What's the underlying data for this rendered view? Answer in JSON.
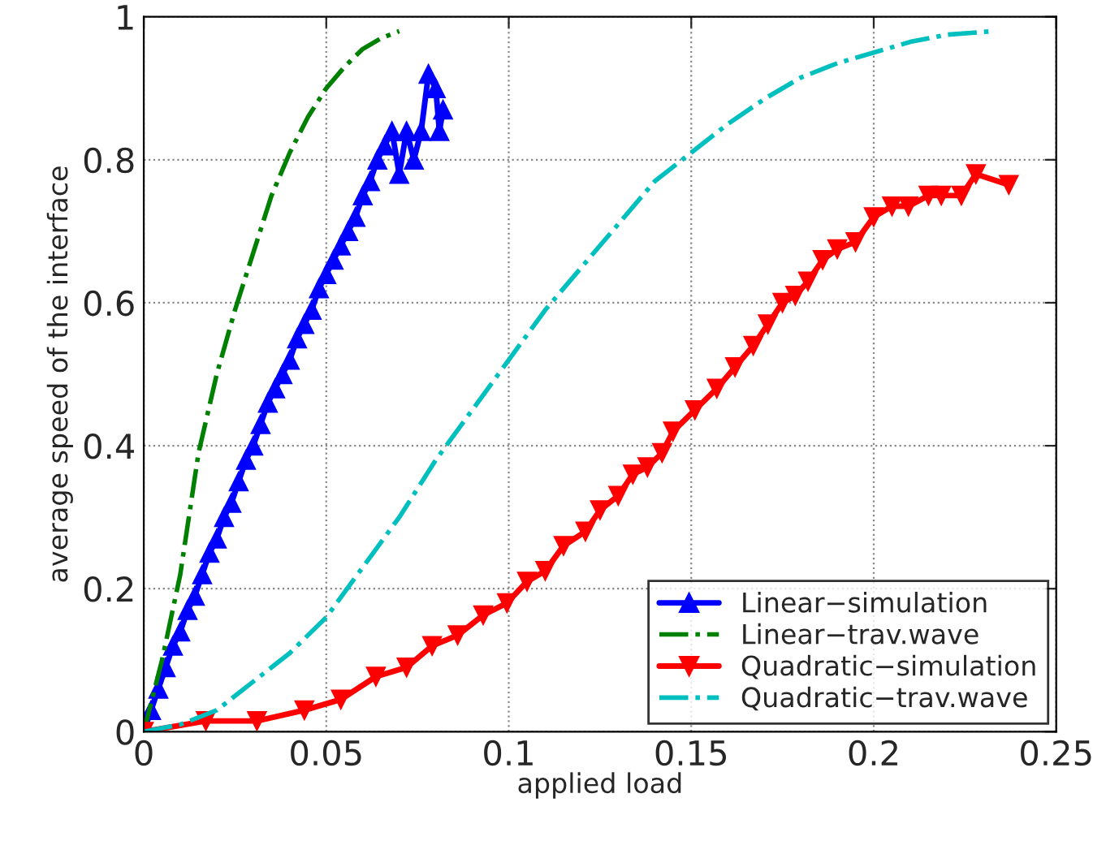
{
  "chart_data": {
    "type": "line",
    "xlabel": "applied load",
    "ylabel": "average speed of the interface",
    "xlim": [
      0,
      0.25
    ],
    "ylim": [
      0,
      1
    ],
    "xticks": [
      0,
      0.05,
      0.1,
      0.15,
      0.2,
      0.25
    ],
    "yticks": [
      0,
      0.2,
      0.4,
      0.6,
      0.8,
      1
    ],
    "grid": true,
    "legend": "bottom right",
    "series": [
      {
        "name": "Linear−simulation",
        "color": "#0000ff",
        "marker": "triangle",
        "line_style": "solid",
        "x": [
          0,
          0.002,
          0.004,
          0.006,
          0.008,
          0.01,
          0.012,
          0.014,
          0.016,
          0.018,
          0.02,
          0.022,
          0.024,
          0.026,
          0.028,
          0.03,
          0.032,
          0.034,
          0.036,
          0.038,
          0.04,
          0.042,
          0.044,
          0.046,
          0.048,
          0.05,
          0.052,
          0.054,
          0.056,
          0.058,
          0.06,
          0.062,
          0.064,
          0.066,
          0.068,
          0.07,
          0.072,
          0.074,
          0.076,
          0.078,
          0.08,
          0.081,
          0.082
        ],
        "values": [
          0,
          0.03,
          0.06,
          0.09,
          0.12,
          0.14,
          0.17,
          0.19,
          0.22,
          0.25,
          0.27,
          0.3,
          0.32,
          0.35,
          0.38,
          0.4,
          0.43,
          0.46,
          0.48,
          0.5,
          0.52,
          0.55,
          0.57,
          0.59,
          0.62,
          0.64,
          0.66,
          0.68,
          0.7,
          0.72,
          0.75,
          0.77,
          0.8,
          0.82,
          0.84,
          0.78,
          0.84,
          0.8,
          0.84,
          0.92,
          0.9,
          0.84,
          0.87
        ]
      },
      {
        "name": "Linear−trav.wave",
        "color": "#008000",
        "marker": "none",
        "line_style": "dashdot",
        "x": [
          0,
          0.005,
          0.01,
          0.015,
          0.02,
          0.025,
          0.03,
          0.035,
          0.04,
          0.045,
          0.05,
          0.055,
          0.06,
          0.065,
          0.07
        ],
        "values": [
          0,
          0.1,
          0.22,
          0.39,
          0.5,
          0.59,
          0.67,
          0.75,
          0.81,
          0.86,
          0.9,
          0.93,
          0.955,
          0.97,
          0.98
        ]
      },
      {
        "name": "Quadratic−simulation",
        "color": "#ff0000",
        "marker": "triangle_down",
        "line_style": "solid",
        "x": [
          0,
          0.017,
          0.031,
          0.044,
          0.054,
          0.0636,
          0.072,
          0.079,
          0.086,
          0.093,
          0.0995,
          0.105,
          0.11,
          0.115,
          0.121,
          0.125,
          0.13,
          0.134,
          0.138,
          0.142,
          0.145,
          0.151,
          0.157,
          0.162,
          0.167,
          0.171,
          0.175,
          0.1785,
          0.182,
          0.186,
          0.19,
          0.195,
          0.2,
          0.205,
          0.2095,
          0.215,
          0.2185,
          0.224,
          0.228,
          0.237
        ],
        "values": [
          0,
          0.015,
          0.015,
          0.03,
          0.045,
          0.077,
          0.09,
          0.12,
          0.135,
          0.163,
          0.18,
          0.21,
          0.225,
          0.26,
          0.28,
          0.31,
          0.33,
          0.36,
          0.37,
          0.39,
          0.42,
          0.45,
          0.48,
          0.51,
          0.54,
          0.57,
          0.6,
          0.61,
          0.63,
          0.66,
          0.675,
          0.685,
          0.72,
          0.735,
          0.735,
          0.75,
          0.75,
          0.75,
          0.78,
          0.765
        ]
      },
      {
        "name": "Quadratic−trav.wave",
        "color": "#00bfbf",
        "marker": "none",
        "line_style": "dashdot",
        "x": [
          0,
          0.01,
          0.02,
          0.03,
          0.04,
          0.05,
          0.06,
          0.07,
          0.08,
          0.09,
          0.1,
          0.11,
          0.12,
          0.13,
          0.14,
          0.15,
          0.16,
          0.17,
          0.18,
          0.19,
          0.2,
          0.21,
          0.22,
          0.233
        ],
        "values": [
          0,
          0.01,
          0.03,
          0.07,
          0.11,
          0.16,
          0.23,
          0.3,
          0.38,
          0.45,
          0.52,
          0.59,
          0.65,
          0.71,
          0.77,
          0.81,
          0.85,
          0.885,
          0.915,
          0.935,
          0.95,
          0.965,
          0.975,
          0.98
        ]
      }
    ]
  }
}
